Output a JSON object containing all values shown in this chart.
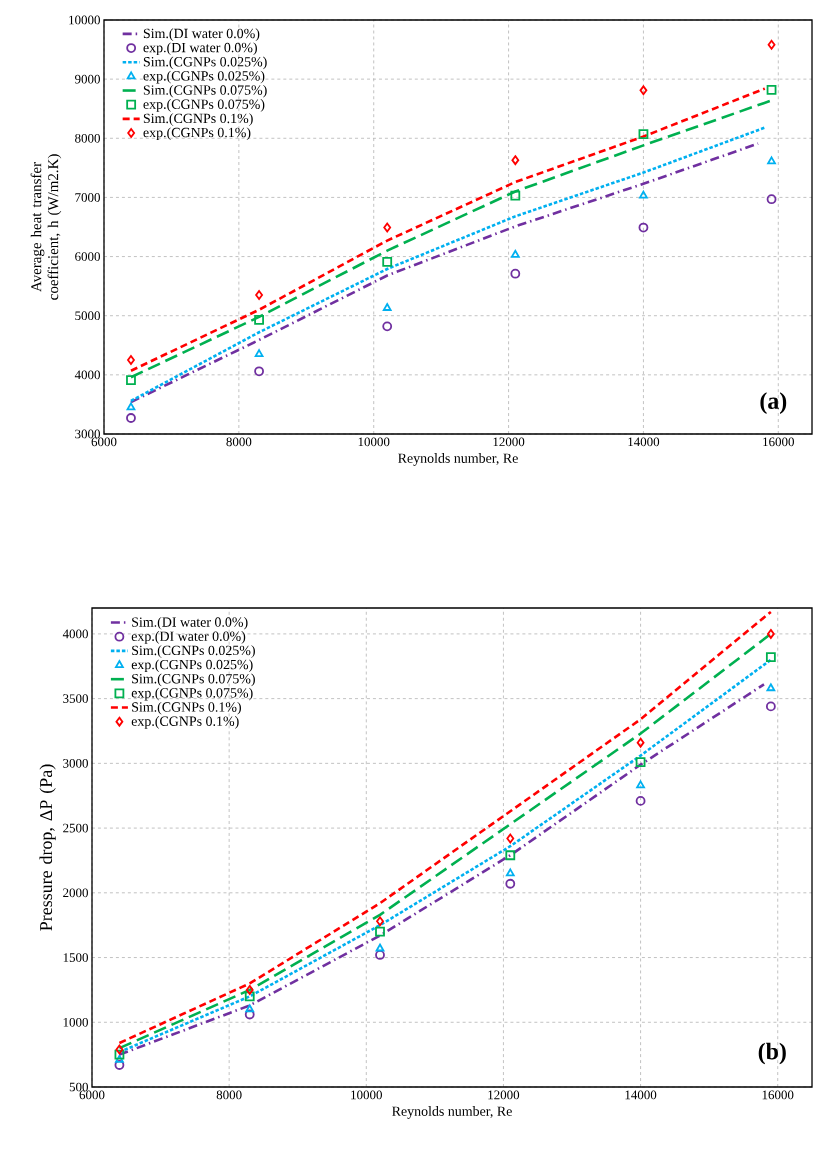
{
  "chart_data": [
    {
      "type": "line",
      "xlabel": "Reynolds number, Re",
      "ylabel": "Average heat transfer coefficient, h (W/m2.K)",
      "annotations": [
        "(a)"
      ],
      "x": [
        6400,
        8300,
        10200,
        12100,
        14000,
        15900
      ],
      "xlim": [
        6000,
        16500
      ],
      "xticks": [
        6000,
        8000,
        10000,
        12000,
        14000,
        16000
      ],
      "ylim": [
        3000,
        10000
      ],
      "yticks": [
        3000,
        4000,
        5000,
        6000,
        7000,
        8000,
        9000,
        10000
      ],
      "grid": true,
      "legend": "top left",
      "series": [
        {
          "name": "Sim.(DI water 0.0%)",
          "color": "#7030a0",
          "line_style": "dashdot",
          "x": [
            6400,
            8300,
            10200,
            12100,
            14000,
            15700
          ],
          "values": [
            3540,
            4590,
            5680,
            6510,
            7230,
            7910
          ]
        },
        {
          "name": "exp.(DI water 0.0%)",
          "type": "scatter",
          "color": "#7030a0",
          "marker": "circle",
          "values": [
            3270,
            4060,
            4820,
            5710,
            6490,
            6970
          ]
        },
        {
          "name": "Sim.(CGNPs 0.025%)",
          "color": "#00b0f0",
          "line_style": "dotted",
          "x": [
            6400,
            8300,
            10200,
            12100,
            14000,
            15800
          ],
          "values": [
            3560,
            4720,
            5790,
            6680,
            7420,
            8180
          ]
        },
        {
          "name": "exp.(CGNPs 0.025%)",
          "type": "scatter",
          "color": "#00b0f0",
          "marker": "triangle",
          "values": [
            3450,
            4350,
            5130,
            6030,
            7030,
            7610
          ]
        },
        {
          "name": "Sim.(CGNPs 0.075%)",
          "color": "#00b050",
          "line_style": "longdashed",
          "values": [
            3960,
            4980,
            6100,
            7100,
            7880,
            8640
          ]
        },
        {
          "name": "exp.(CGNPs 0.075%)",
          "type": "scatter",
          "color": "#00b050",
          "marker": "square",
          "values": [
            3910,
            4930,
            5910,
            7030,
            8070,
            8820
          ]
        },
        {
          "name": "Sim.(CGNPs 0.1%)",
          "color": "#ff0000",
          "line_style": "dashed",
          "x": [
            6400,
            8300,
            10200,
            12100,
            14000,
            15800
          ],
          "values": [
            4070,
            5100,
            6270,
            7260,
            8030,
            8840
          ]
        },
        {
          "name": "exp.(CGNPs 0.1%)",
          "type": "scatter",
          "color": "#ff0000",
          "marker": "diamond",
          "values": [
            4250,
            5350,
            6490,
            7630,
            8810,
            9580
          ]
        }
      ]
    },
    {
      "type": "line",
      "xlabel": "Reynolds number, Re",
      "ylabel": "Pressure drop, ΔP (Pa)",
      "annotations": [
        "(b)"
      ],
      "x": [
        6400,
        8300,
        10200,
        12100,
        14000,
        15900
      ],
      "xlim": [
        6000,
        16500
      ],
      "xticks": [
        6000,
        8000,
        10000,
        12000,
        14000,
        16000
      ],
      "ylim": [
        500,
        4200
      ],
      "yticks": [
        500,
        1000,
        1500,
        2000,
        2500,
        3000,
        3500,
        4000
      ],
      "grid": true,
      "legend": "top left",
      "series": [
        {
          "name": "Sim.(DI water 0.0%)",
          "color": "#7030a0",
          "line_style": "dashdot",
          "x": [
            6400,
            8300,
            10200,
            12100,
            14000,
            15800
          ],
          "values": [
            750,
            1130,
            1670,
            2290,
            2990,
            3610
          ]
        },
        {
          "name": "exp.(DI water 0.0%)",
          "type": "scatter",
          "color": "#7030a0",
          "marker": "circle",
          "values": [
            670,
            1060,
            1520,
            2070,
            2710,
            3440
          ]
        },
        {
          "name": "Sim.(CGNPs 0.025%)",
          "color": "#00b0f0",
          "line_style": "dotted",
          "values": [
            770,
            1200,
            1750,
            2360,
            3060,
            3800
          ]
        },
        {
          "name": "exp.(CGNPs 0.025%)",
          "type": "scatter",
          "color": "#00b0f0",
          "marker": "triangle",
          "values": [
            710,
            1100,
            1570,
            2150,
            2830,
            3580
          ]
        },
        {
          "name": "Sim.(CGNPs 0.075%)",
          "color": "#00b050",
          "line_style": "longdashed",
          "values": [
            800,
            1250,
            1830,
            2530,
            3230,
            4000
          ]
        },
        {
          "name": "exp.(CGNPs 0.075%)",
          "type": "scatter",
          "color": "#00b050",
          "marker": "square",
          "values": [
            750,
            1200,
            1700,
            2290,
            3010,
            3820
          ]
        },
        {
          "name": "Sim.(CGNPs 0.1%)",
          "color": "#ff0000",
          "line_style": "dashed",
          "values": [
            840,
            1300,
            1920,
            2630,
            3340,
            4170
          ]
        },
        {
          "name": "exp.(CGNPs 0.1%)",
          "type": "scatter",
          "color": "#ff0000",
          "marker": "diamond",
          "values": [
            790,
            1250,
            1780,
            2420,
            3160,
            4000
          ]
        }
      ]
    }
  ]
}
